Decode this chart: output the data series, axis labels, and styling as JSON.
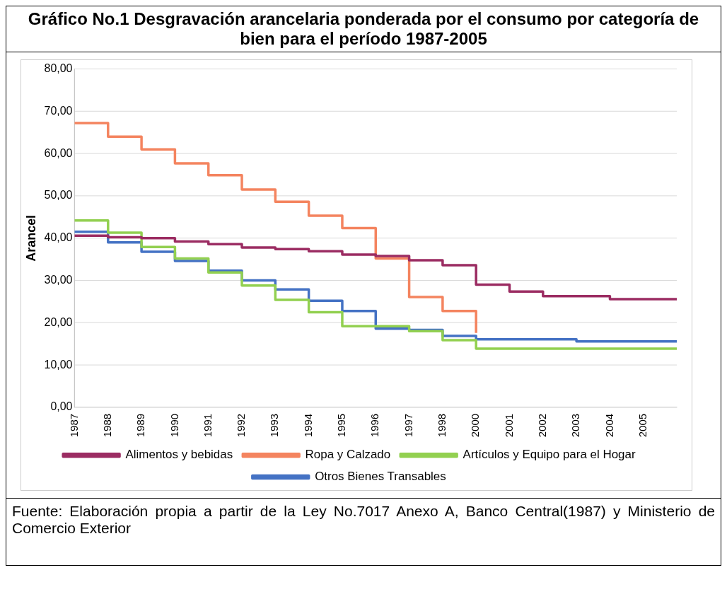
{
  "chart_data": {
    "type": "step",
    "title": "Gráfico No.1 Desgravación arancelaria ponderada por el consumo por categoría de bien para el período 1987-2005",
    "ylabel": "Arancel",
    "categories": [
      "1987",
      "1988",
      "1989",
      "1990",
      "1991",
      "1992",
      "1993",
      "1994",
      "1995",
      "1996",
      "1997",
      "1998",
      "2000",
      "2001",
      "2002",
      "2003",
      "2004",
      "2005",
      null
    ],
    "series": [
      {
        "name": "Alimentos y bebidas",
        "color": "#9b2c62",
        "values": [
          40.6,
          40.2,
          40.0,
          39.2,
          38.6,
          37.8,
          37.4,
          36.9,
          36.1,
          35.8,
          34.8,
          33.6,
          29.0,
          27.4,
          26.3,
          26.3,
          25.6,
          25.6,
          25.6
        ]
      },
      {
        "name": "Ropa y Calzado",
        "color": "#f4845f",
        "values": [
          67.2,
          64.0,
          61.0,
          57.7,
          54.9,
          51.5,
          48.6,
          45.3,
          42.4,
          35.2,
          26.1,
          22.8,
          17.6,
          null,
          null,
          null,
          null,
          null,
          null
        ]
      },
      {
        "name": "Artículos y Equipo para el Hogar",
        "color": "#92d050",
        "values": [
          44.2,
          41.3,
          37.9,
          35.2,
          31.9,
          28.8,
          25.4,
          22.5,
          19.2,
          19.2,
          18.0,
          15.9,
          13.9,
          13.9,
          13.9,
          13.9,
          13.9,
          13.9,
          13.9
        ]
      },
      {
        "name": "Otros Bienes Transables",
        "color": "#4472c4",
        "values": [
          41.5,
          39.0,
          36.8,
          34.6,
          32.3,
          30.0,
          27.9,
          25.2,
          22.8,
          18.6,
          18.3,
          16.9,
          16.1,
          16.1,
          16.1,
          15.6,
          15.6,
          15.6,
          15.6
        ]
      }
    ],
    "ylim": [
      0,
      80
    ],
    "yticks": [
      {
        "value": 0,
        "label": "0,00"
      },
      {
        "value": 10,
        "label": "10,00"
      },
      {
        "value": 20,
        "label": "20,00"
      },
      {
        "value": 30,
        "label": "30,00"
      },
      {
        "value": 40,
        "label": "40,00"
      },
      {
        "value": 50,
        "label": "50,00"
      },
      {
        "value": 60,
        "label": "60,00"
      },
      {
        "value": 70,
        "label": "70,00"
      },
      {
        "value": 80,
        "label": "80,00"
      }
    ],
    "grid": "y",
    "legend": "bottom",
    "marker": "none",
    "line_style": "solid",
    "annotations": [
      "Fuente: Elaboración propia a partir de la Ley No.7017 Anexo A, Banco Central(1987) y Ministerio de Comercio Exterior"
    ]
  }
}
